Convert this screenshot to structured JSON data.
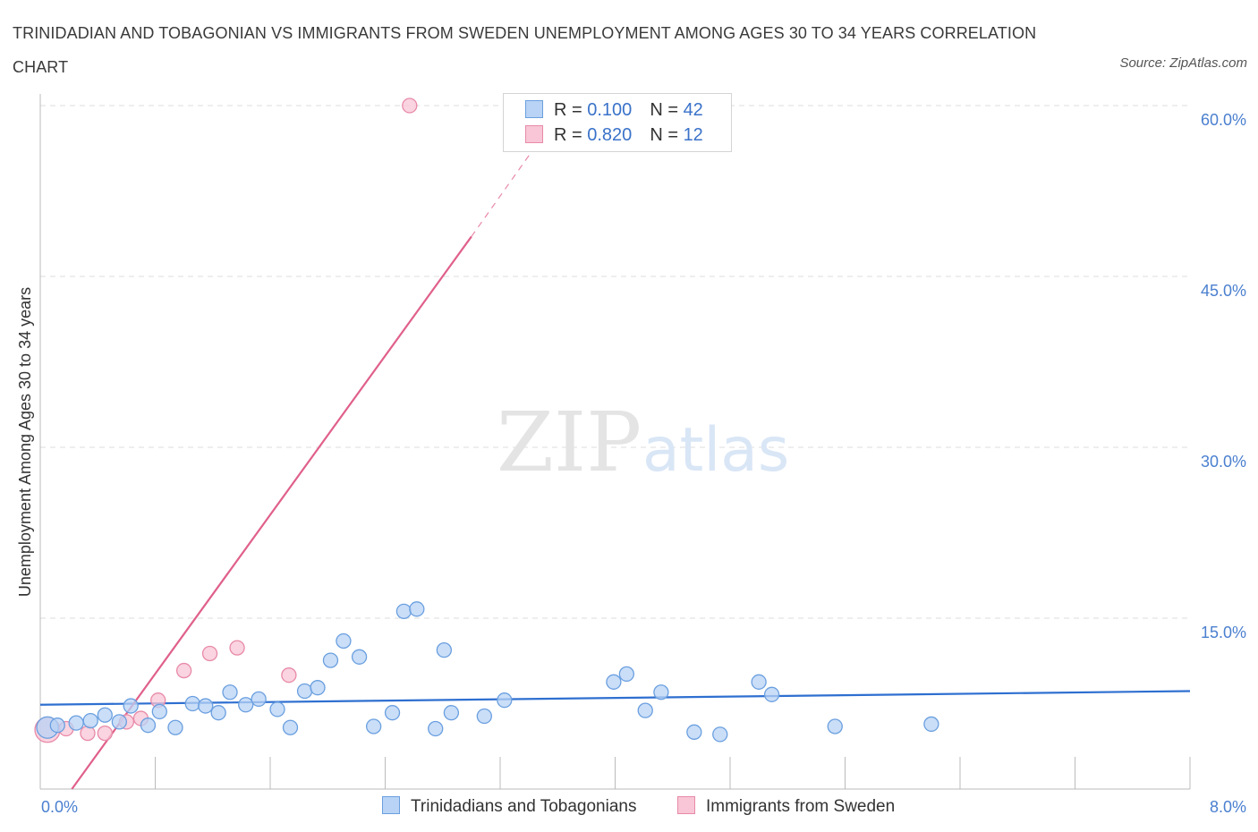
{
  "header": {
    "title": "TRINIDADIAN AND TOBAGONIAN VS IMMIGRANTS FROM SWEDEN UNEMPLOYMENT AMONG AGES 30 TO 34 YEARS CORRELATION CHART",
    "source": "Source: ZipAtlas.com"
  },
  "watermark": {
    "zip": "ZIP",
    "atlas": "atlas"
  },
  "legend": {
    "rows": [
      {
        "r_label": "R =",
        "r_value": "0.100",
        "n_label": "N =",
        "n_value": "42"
      },
      {
        "r_label": "R =",
        "r_value": "0.820",
        "n_label": "N =",
        "n_value": "12"
      }
    ]
  },
  "colors": {
    "series1_fill": "#b8d3f5",
    "series1_stroke": "#6a9fdf",
    "series1_line": "#2e6fd0",
    "series2_fill": "#f8c6d6",
    "series2_stroke": "#e88aa8",
    "series2_line": "#e0608a",
    "tick": "#4a7fcf",
    "grid": "#dcdcdc"
  },
  "chart_data": {
    "type": "scatter",
    "title": "TRINIDADIAN AND TOBAGONIAN VS IMMIGRANTS FROM SWEDEN UNEMPLOYMENT AMONG AGES 30 TO 34 YEARS CORRELATION CHART",
    "xlabel": "",
    "ylabel": "Unemployment Among Ages 30 to 34 years",
    "xlim": [
      0,
      8
    ],
    "ylim": [
      0,
      60
    ],
    "x_tick_labels": [
      "0.0%",
      "8.0%"
    ],
    "y_ticks": [
      15,
      30,
      45,
      60
    ],
    "y_tick_labels": [
      "15.0%",
      "30.0%",
      "45.0%",
      "60.0%"
    ],
    "grid": true,
    "legend_position": "bottom",
    "series": [
      {
        "name": "Trinidadians and Tobagonians",
        "points": [
          [
            0.05,
            5.4
          ],
          [
            0.12,
            5.6
          ],
          [
            0.25,
            5.8
          ],
          [
            0.35,
            6.0
          ],
          [
            0.45,
            6.5
          ],
          [
            0.55,
            5.9
          ],
          [
            0.63,
            7.3
          ],
          [
            0.75,
            5.6
          ],
          [
            0.83,
            6.8
          ],
          [
            0.94,
            5.4
          ],
          [
            1.06,
            7.5
          ],
          [
            1.15,
            7.3
          ],
          [
            1.24,
            6.7
          ],
          [
            1.32,
            8.5
          ],
          [
            1.43,
            7.4
          ],
          [
            1.52,
            7.9
          ],
          [
            1.65,
            7.0
          ],
          [
            1.74,
            5.4
          ],
          [
            1.84,
            8.6
          ],
          [
            1.93,
            8.9
          ],
          [
            2.02,
            11.3
          ],
          [
            2.11,
            13.0
          ],
          [
            2.22,
            11.6
          ],
          [
            2.32,
            5.5
          ],
          [
            2.45,
            6.7
          ],
          [
            2.53,
            15.6
          ],
          [
            2.62,
            15.8
          ],
          [
            2.75,
            5.3
          ],
          [
            2.81,
            12.2
          ],
          [
            2.86,
            6.7
          ],
          [
            3.09,
            6.4
          ],
          [
            3.23,
            7.8
          ],
          [
            3.99,
            9.4
          ],
          [
            4.08,
            10.1
          ],
          [
            4.21,
            6.9
          ],
          [
            4.32,
            8.5
          ],
          [
            4.55,
            5.0
          ],
          [
            4.73,
            4.8
          ],
          [
            5.0,
            9.4
          ],
          [
            5.09,
            8.3
          ],
          [
            5.53,
            5.5
          ],
          [
            6.2,
            5.7
          ]
        ]
      },
      {
        "name": "Immigrants from Sweden",
        "points": [
          [
            0.05,
            5.2
          ],
          [
            0.18,
            5.3
          ],
          [
            0.33,
            4.9
          ],
          [
            0.45,
            4.9
          ],
          [
            0.6,
            5.9
          ],
          [
            0.7,
            6.2
          ],
          [
            0.82,
            7.8
          ],
          [
            1.0,
            10.4
          ],
          [
            1.18,
            11.9
          ],
          [
            1.37,
            12.4
          ],
          [
            1.73,
            10.0
          ],
          [
            2.57,
            60.0
          ]
        ]
      }
    ],
    "trend_lines": [
      {
        "series": "Trinidadians and Tobagonians",
        "x": [
          0,
          8
        ],
        "y": [
          7.4,
          8.6
        ]
      },
      {
        "series": "Immigrants from Sweden",
        "x": [
          0.22,
          3.0
        ],
        "y": [
          0,
          48.5
        ],
        "dashed_extension_to": [
          3.45,
          56.5
        ]
      }
    ]
  },
  "bottom_legend": {
    "items": [
      {
        "label": "Trinidadians and Tobagonians"
      },
      {
        "label": "Immigrants from Sweden"
      }
    ]
  }
}
